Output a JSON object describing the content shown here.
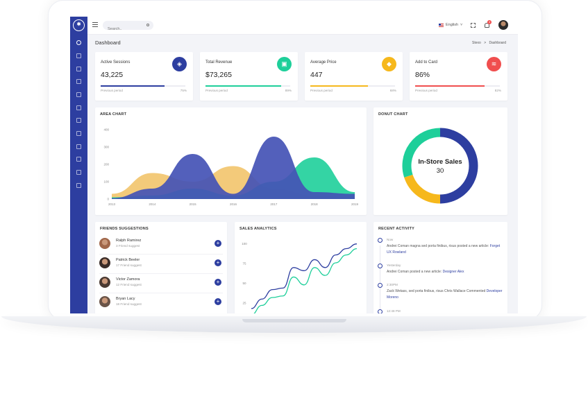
{
  "header": {
    "search_placeholder": "Search..",
    "language": "English"
  },
  "notifications_count": "3",
  "page": {
    "title": "Dashboard",
    "breadcrumb_root": "Stexo",
    "breadcrumb_separator": ">",
    "breadcrumb_current": "Dashboard"
  },
  "stats": [
    {
      "label": "Active Sessions",
      "value": "43,225",
      "prev_label": "Previous period",
      "percent": "75%",
      "progress": 0.75,
      "color": "#2d3ea0",
      "icon": "cube-icon"
    },
    {
      "label": "Total Revenue",
      "value": "$73,265",
      "prev_label": "Previous period",
      "percent": "89%",
      "progress": 0.89,
      "color": "#1ecf9a",
      "icon": "briefcase-icon"
    },
    {
      "label": "Average Price",
      "value": "447",
      "prev_label": "Previous period",
      "percent": "68%",
      "progress": 0.68,
      "color": "#f6b81c",
      "icon": "tag-icon"
    },
    {
      "label": "Add to Card",
      "value": "86%",
      "prev_label": "Previous period",
      "percent": "82%",
      "progress": 0.82,
      "color": "#f04e4e",
      "icon": "layers-icon"
    }
  ],
  "area_chart_title": "AREA CHART",
  "donut_chart_title": "DONUT CHART",
  "friends_title": "FRIENDS SUGGESTIONS",
  "sales_title": "SALES ANALYTICS",
  "activity_title": "RECENT ACTIVITY",
  "chart_data": [
    {
      "type": "area",
      "title": "AREA CHART",
      "x": [
        "2013",
        "2014",
        "2015",
        "2016",
        "2017",
        "2018",
        "2019"
      ],
      "ylim": [
        0,
        400
      ],
      "yticks": [
        0,
        100,
        200,
        300,
        400
      ],
      "series": [
        {
          "color": "#f2c46b",
          "values": [
            30,
            150,
            100,
            190,
            60,
            20,
            10
          ]
        },
        {
          "color": "#1ecf9a",
          "values": [
            10,
            20,
            60,
            20,
            100,
            240,
            40
          ]
        },
        {
          "color": "#4452b5",
          "values": [
            5,
            60,
            260,
            30,
            360,
            40,
            30
          ]
        }
      ],
      "grid": false
    },
    {
      "type": "pie",
      "title": "DONUT CHART",
      "center_label": "In-Store Sales",
      "center_value": "30",
      "series": [
        {
          "color": "#2d3ea0",
          "value": 50
        },
        {
          "color": "#f6b81c",
          "value": 20
        },
        {
          "color": "#1ecf9a",
          "value": 30
        }
      ]
    },
    {
      "type": "line",
      "title": "SALES ANALYTICS",
      "ylim": [
        10,
        105
      ],
      "yticks": [
        25,
        50,
        75,
        100
      ],
      "x": [
        0,
        1,
        2,
        3,
        4,
        5,
        6,
        7,
        8,
        9,
        10
      ],
      "series": [
        {
          "color": "#2d3ea0",
          "values": [
            18,
            30,
            42,
            44,
            70,
            66,
            80,
            70,
            86,
            94,
            100
          ]
        },
        {
          "color": "#1ecf9a",
          "values": [
            10,
            22,
            32,
            34,
            58,
            48,
            70,
            60,
            76,
            86,
            94
          ]
        }
      ],
      "grid": false
    }
  ],
  "friends": [
    {
      "name": "Ralph Ramirez",
      "sub": "3 Friend suggest",
      "avatar_color": "#a0674a"
    },
    {
      "name": "Patrick Beeler",
      "sub": "17 Friend suggest",
      "avatar_color": "#3a2c28"
    },
    {
      "name": "Victor Zamora",
      "sub": "12 Friend suggest",
      "avatar_color": "#4a3a32"
    },
    {
      "name": "Bryan Lacy",
      "sub": "18 Friend suggest",
      "avatar_color": "#6a5448"
    }
  ],
  "activity": [
    {
      "time": "Now",
      "text": "Andrei Coman magna sed porta finibus, risus posted a new article:",
      "link": "Forget UX Rowland"
    },
    {
      "time": "Yesterday",
      "text": "Andrei Coman posted a new article:",
      "link": "Designer Alex"
    },
    {
      "time": "2:30PM",
      "text": "Zack Wetass, sed porta finibus, risus Chris Wallace Commented",
      "link": "Developer Moreno"
    },
    {
      "time": "12:48 PM",
      "text": "",
      "link": ""
    }
  ]
}
